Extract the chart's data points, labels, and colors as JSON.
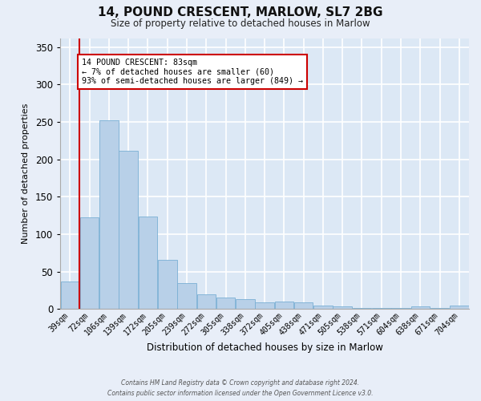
{
  "title": "14, POUND CRESCENT, MARLOW, SL7 2BG",
  "subtitle": "Size of property relative to detached houses in Marlow",
  "xlabel": "Distribution of detached houses by size in Marlow",
  "ylabel": "Number of detached properties",
  "bar_color": "#b8d0e8",
  "bar_edge_color": "#7aafd4",
  "background_color": "#dce8f5",
  "figure_color": "#e8eef8",
  "grid_color": "#ffffff",
  "categories": [
    "39sqm",
    "72sqm",
    "106sqm",
    "139sqm",
    "172sqm",
    "205sqm",
    "239sqm",
    "272sqm",
    "305sqm",
    "338sqm",
    "372sqm",
    "405sqm",
    "438sqm",
    "471sqm",
    "505sqm",
    "538sqm",
    "571sqm",
    "604sqm",
    "638sqm",
    "671sqm",
    "704sqm"
  ],
  "values": [
    37,
    123,
    252,
    211,
    124,
    66,
    35,
    20,
    15,
    13,
    9,
    10,
    9,
    5,
    3,
    1,
    1,
    1,
    3,
    1,
    5
  ],
  "ylim": [
    0,
    362
  ],
  "yticks": [
    0,
    50,
    100,
    150,
    200,
    250,
    300,
    350
  ],
  "vline_color": "#cc0000",
  "vline_x": 0.5,
  "annotation_title": "14 POUND CRESCENT: 83sqm",
  "annotation_line1": "← 7% of detached houses are smaller (60)",
  "annotation_line2": "93% of semi-detached houses are larger (849) →",
  "annotation_box_color": "#ffffff",
  "annotation_box_edge": "#cc0000",
  "footer1": "Contains HM Land Registry data © Crown copyright and database right 2024.",
  "footer2": "Contains public sector information licensed under the Open Government Licence v3.0."
}
